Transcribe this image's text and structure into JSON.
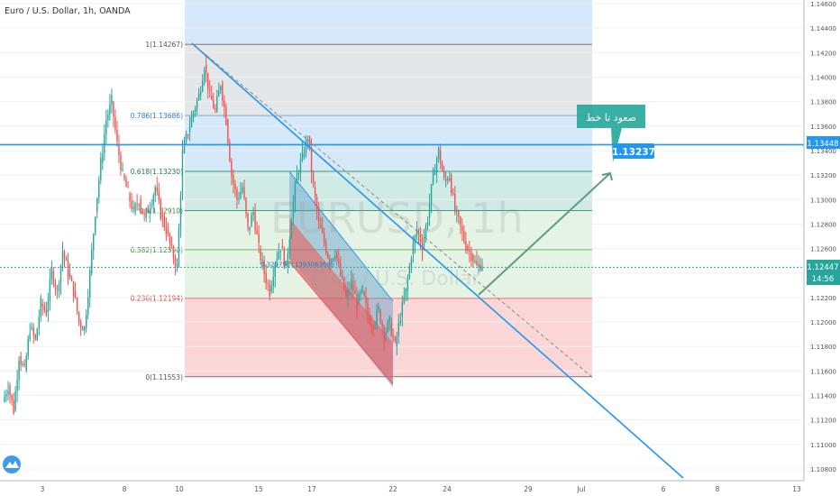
{
  "header": {
    "symbol_title": "Euro / U.S. Dollar, 1h, OANDA"
  },
  "watermark": {
    "symbol": "EURUSD, 1h",
    "name": "Euro / U.S. Dollar"
  },
  "logo": {
    "name": "tradingview-logo-icon"
  },
  "colors": {
    "up": "#26a69a",
    "down": "#ef5350",
    "trend_line": "#2196f3",
    "label_bg": "#2196f3",
    "annotation_bg": "#26a69a",
    "fib_blue": "#d6e9fb",
    "fib_grey": "#e6e6e6",
    "fib_teal": "#cdeae4",
    "fib_green": "#e3f2e1",
    "fib_red": "#fbd4d4"
  },
  "annotation": {
    "text": "صعود تا خط",
    "target_label": "1.13237"
  },
  "price_labels": {
    "horizontal_line": "1.13448",
    "current_price": "1.12447",
    "countdown": "14:56"
  },
  "fibonacci": {
    "levels": [
      {
        "ratio": "1",
        "value": 1.14267,
        "label": "1(1.14267)"
      },
      {
        "ratio": "0.786",
        "value": 1.13686,
        "label": "0.786(1.13686)"
      },
      {
        "ratio": "0.618",
        "value": 1.1323,
        "label": "0.618(1.13230)"
      },
      {
        "ratio": "0.5",
        "value": 1.1291,
        "label": "0.5(1.12910)"
      },
      {
        "ratio": "0.382",
        "value": 1.1259,
        "label": "0.382(1.12590)"
      },
      {
        "ratio": "0.236",
        "value": 1.12194,
        "label": "0.236(1.12194)"
      },
      {
        "ratio": "0",
        "value": 1.11553,
        "label": "0(1.11553)"
      }
    ],
    "overlap_label": "0.32979511393063685"
  },
  "chart_data": {
    "type": "candlestick",
    "title": "Euro / U.S. Dollar, 1h, OANDA",
    "ylim": [
      1.1066,
      1.1462
    ],
    "y_ticks": [
      "1.14600",
      "1.14400",
      "1.14200",
      "1.14000",
      "1.13800",
      "1.13600",
      "1.13400",
      "1.13200",
      "1.13000",
      "1.12800",
      "1.12600",
      "1.12400",
      "1.12200",
      "1.12000",
      "1.11800",
      "1.11600",
      "1.11400",
      "1.11200",
      "1.11000",
      "1.10800"
    ],
    "x_ticks": [
      "3",
      "8",
      "10",
      "15",
      "17",
      "22",
      "24",
      "29",
      "Jul",
      "6",
      "8",
      "13"
    ],
    "horizontal_line": 1.13448,
    "current_price": 1.12447,
    "target_price": 1.13237,
    "price_path": [
      [
        1.1135,
        1.1148
      ],
      [
        1.1148,
        1.1128
      ],
      [
        1.1128,
        1.1172
      ],
      [
        1.1172,
        1.116
      ],
      [
        1.116,
        1.1195
      ],
      [
        1.1195,
        1.1185
      ],
      [
        1.1185,
        1.1215
      ],
      [
        1.1215,
        1.1208
      ],
      [
        1.1208,
        1.1242
      ],
      [
        1.1242,
        1.1225
      ],
      [
        1.1225,
        1.1258
      ],
      [
        1.1258,
        1.124
      ],
      [
        1.124,
        1.1225
      ],
      [
        1.1225,
        1.12
      ],
      [
        1.12,
        1.1195
      ],
      [
        1.1195,
        1.124
      ],
      [
        1.124,
        1.129
      ],
      [
        1.129,
        1.133
      ],
      [
        1.133,
        1.1365
      ],
      [
        1.1365,
        1.138
      ],
      [
        1.138,
        1.1345
      ],
      [
        1.1345,
        1.132
      ],
      [
        1.132,
        1.1305
      ],
      [
        1.1305,
        1.129
      ],
      [
        1.129,
        1.13
      ],
      [
        1.13,
        1.1285
      ],
      [
        1.1285,
        1.1295
      ],
      [
        1.1295,
        1.131
      ],
      [
        1.131,
        1.1288
      ],
      [
        1.1288,
        1.1275
      ],
      [
        1.1275,
        1.1258
      ],
      [
        1.1258,
        1.1245
      ],
      [
        1.1245,
        1.1338
      ],
      [
        1.1338,
        1.1355
      ],
      [
        1.1355,
        1.1372
      ],
      [
        1.1372,
        1.1385
      ],
      [
        1.1385,
        1.141
      ],
      [
        1.141,
        1.1385
      ],
      [
        1.1385,
        1.1372
      ],
      [
        1.1372,
        1.1395
      ],
      [
        1.1395,
        1.1365
      ],
      [
        1.1365,
        1.132
      ],
      [
        1.132,
        1.13
      ],
      [
        1.13,
        1.131
      ],
      [
        1.131,
        1.1275
      ],
      [
        1.1275,
        1.129
      ],
      [
        1.129,
        1.126
      ],
      [
        1.126,
        1.124
      ],
      [
        1.124,
        1.1225
      ],
      [
        1.1225,
        1.125
      ],
      [
        1.125,
        1.1262
      ],
      [
        1.1262,
        1.1245
      ],
      [
        1.1245,
        1.1285
      ],
      [
        1.1285,
        1.132
      ],
      [
        1.132,
        1.1335
      ],
      [
        1.1335,
        1.1352
      ],
      [
        1.1352,
        1.131
      ],
      [
        1.131,
        1.128
      ],
      [
        1.128,
        1.1265
      ],
      [
        1.1265,
        1.125
      ],
      [
        1.125,
        1.1258
      ],
      [
        1.1258,
        1.1238
      ],
      [
        1.1238,
        1.122
      ],
      [
        1.122,
        1.1232
      ],
      [
        1.1232,
        1.1215
      ],
      [
        1.1215,
        1.1225
      ],
      [
        1.1225,
        1.1205
      ],
      [
        1.1205,
        1.1198
      ],
      [
        1.1198,
        1.121
      ],
      [
        1.121,
        1.119
      ],
      [
        1.119,
        1.12
      ],
      [
        1.12,
        1.118
      ],
      [
        1.118,
        1.1205
      ],
      [
        1.1205,
        1.1225
      ],
      [
        1.1225,
        1.1255
      ],
      [
        1.1255,
        1.1275
      ],
      [
        1.1275,
        1.1262
      ],
      [
        1.1262,
        1.1285
      ],
      [
        1.1285,
        1.132
      ],
      [
        1.132,
        1.134
      ],
      [
        1.134,
        1.1315
      ],
      [
        1.1315,
        1.132
      ],
      [
        1.132,
        1.129
      ],
      [
        1.129,
        1.1278
      ],
      [
        1.1278,
        1.1262
      ],
      [
        1.1262,
        1.1255
      ],
      [
        1.1255,
        1.1245
      ],
      [
        1.1245,
        1.1248
      ]
    ]
  }
}
